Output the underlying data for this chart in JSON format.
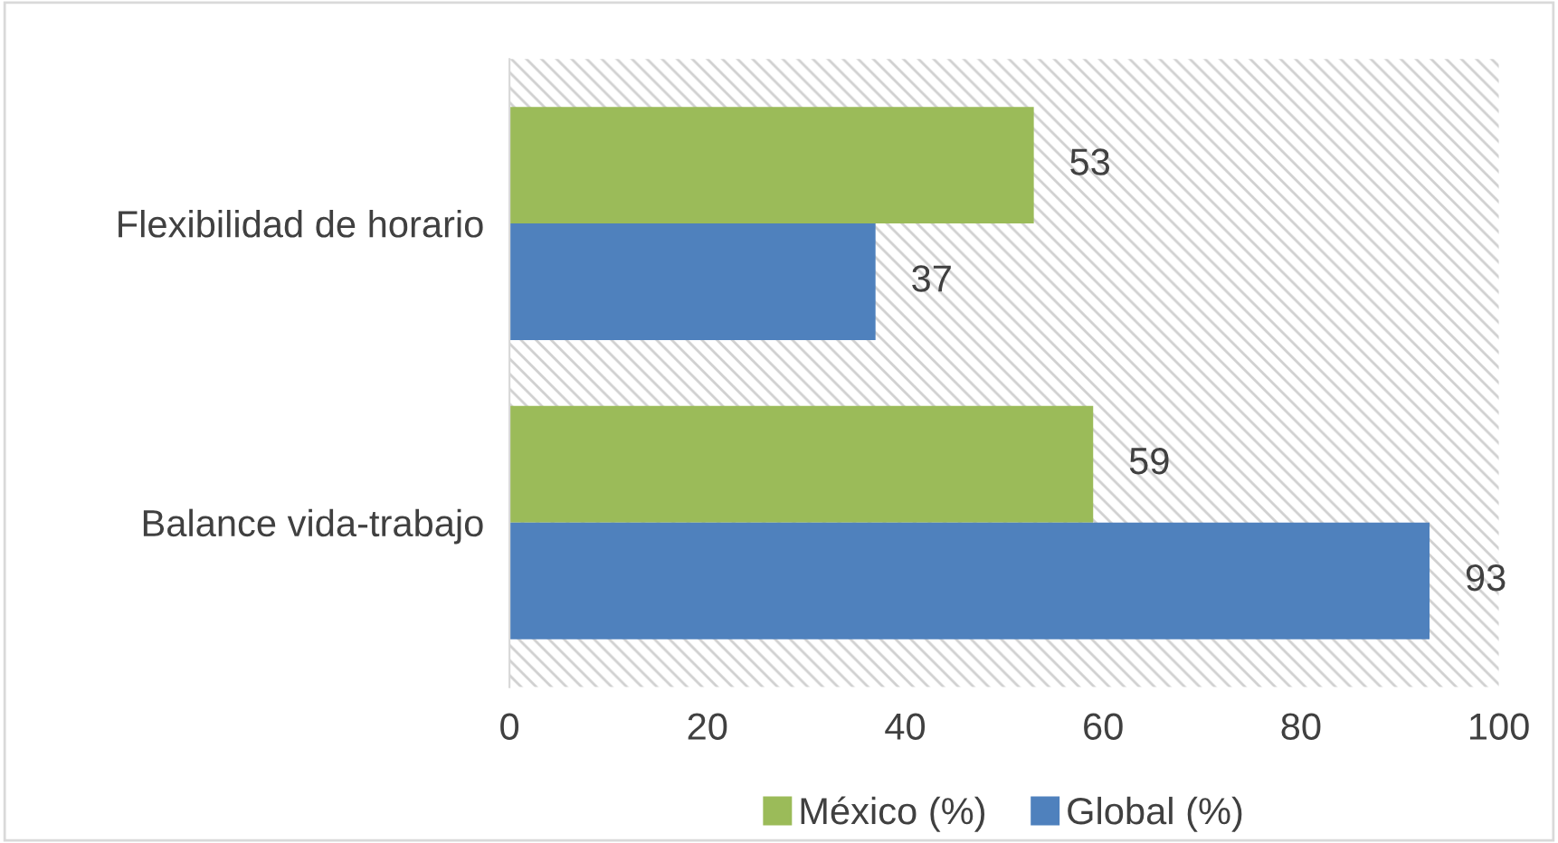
{
  "chart_data": {
    "type": "bar",
    "orientation": "horizontal",
    "categories": [
      "Flexibilidad de horario",
      "Balance vida-trabajo"
    ],
    "series": [
      {
        "name": "México (%)",
        "color": "#9bbb59",
        "values": [
          53,
          59
        ]
      },
      {
        "name": "Global (%)",
        "color": "#4f81bd",
        "values": [
          37,
          93
        ]
      }
    ],
    "xlim": [
      0,
      100
    ],
    "xticks": [
      0,
      20,
      40,
      60,
      80,
      100
    ],
    "data_labels": true,
    "legend": "bottom",
    "grid": false
  }
}
